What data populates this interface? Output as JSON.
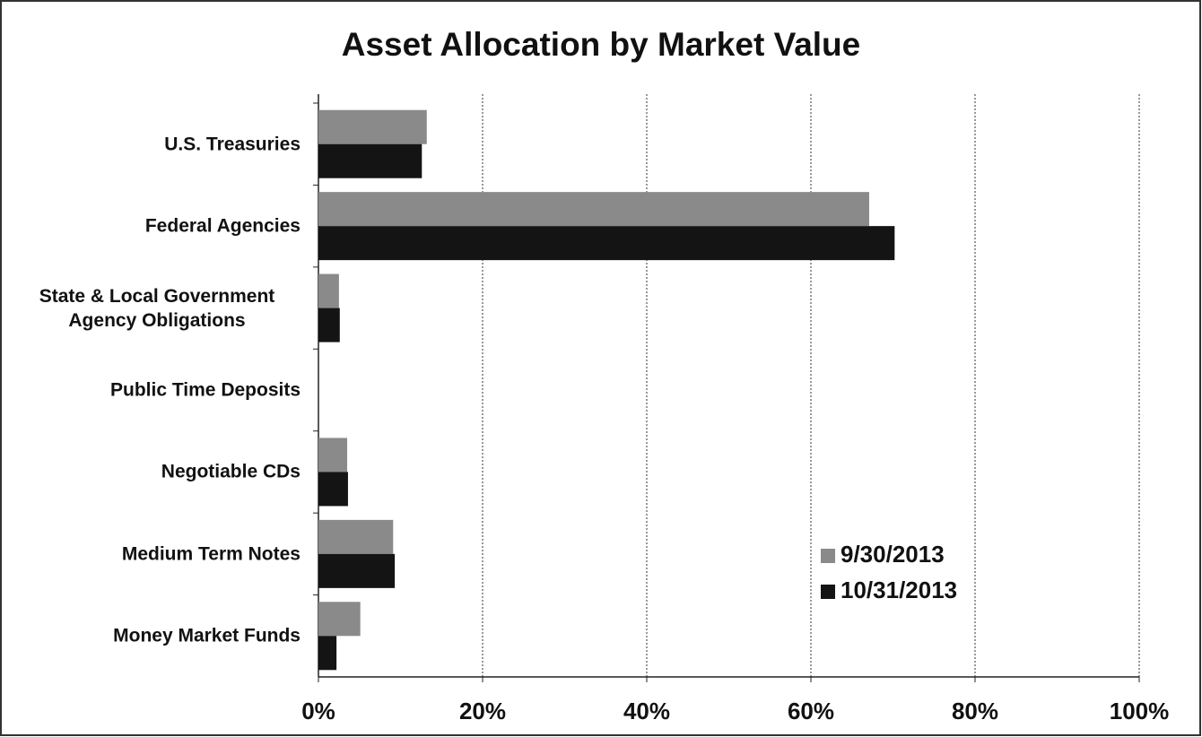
{
  "chart_data": {
    "type": "hbar",
    "title": "Asset Allocation by Market Value",
    "categories": [
      "U.S. Treasuries",
      "Federal Agencies",
      "State & Local Government Agency Obligations",
      "Public Time Deposits",
      "Negotiable CDs",
      "Medium Term Notes",
      "Money Market Funds"
    ],
    "series": [
      {
        "name": "9/30/2013",
        "color": "#8a8a8a",
        "values": [
          13.2,
          67.1,
          2.5,
          0,
          3.5,
          9.1,
          5.1
        ]
      },
      {
        "name": "10/31/2013",
        "color": "#141414",
        "values": [
          12.6,
          70.2,
          2.6,
          0,
          3.6,
          9.3,
          2.2
        ]
      }
    ],
    "xlim": [
      0,
      100
    ],
    "xticks": [
      {
        "value": 0,
        "label": "0%"
      },
      {
        "value": 20,
        "label": "20%"
      },
      {
        "value": 40,
        "label": "40%"
      },
      {
        "value": 60,
        "label": "60%"
      },
      {
        "value": 80,
        "label": "80%"
      },
      {
        "value": 100,
        "label": "100%"
      }
    ],
    "grid": true,
    "legend": "lower right"
  }
}
